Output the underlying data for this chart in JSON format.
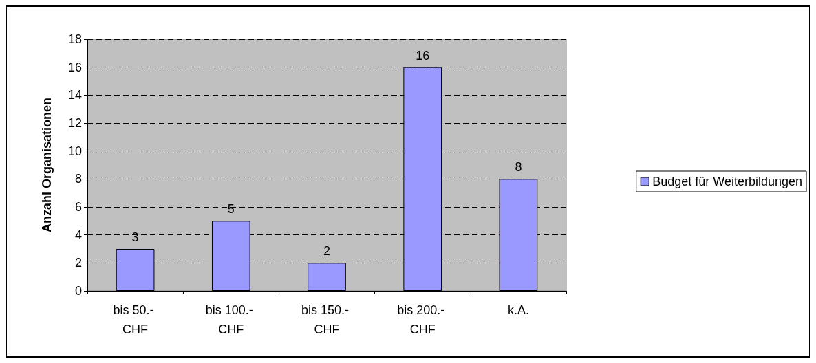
{
  "chart_data": {
    "type": "bar",
    "ylabel": "Anzahl Organisationen",
    "categories": [
      "bis 50.- CHF",
      "bis 100.- CHF",
      "bis 150.- CHF",
      "bis 200.- CHF",
      "k.A."
    ],
    "series": [
      {
        "name": "Budget für Weiterbildungen",
        "color": "#9999ff",
        "values": [
          3,
          5,
          2,
          16,
          8
        ]
      }
    ],
    "ylim": [
      0,
      18
    ],
    "yticks": [
      0,
      2,
      4,
      6,
      8,
      10,
      12,
      14,
      16,
      18
    ],
    "grid": "y",
    "legend": "right",
    "data_labels": true
  }
}
